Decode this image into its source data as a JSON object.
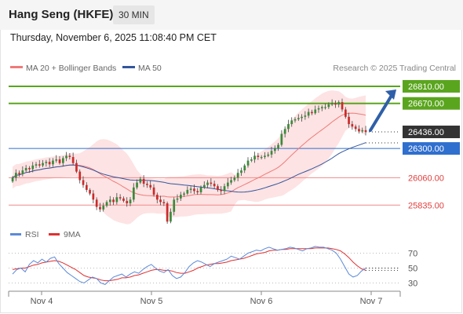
{
  "header": {
    "title": "Hang Seng (HKFE)",
    "interval": "30 MIN",
    "datetime": "Thursday, November 6, 2025 11:08:40 PM CET"
  },
  "legend": {
    "ma20_bb": "MA 20 + Bollinger Bands",
    "ma50": "MA 50",
    "credit": "Research © 2025 Trading Central",
    "rsi": "RSI",
    "rsi_ma": "9MA"
  },
  "colors": {
    "up": "#3a8a3a",
    "down": "#cc2a2a",
    "ma20": "#f07a7a",
    "ma50": "#33559e",
    "band": "#fde0e0",
    "green_level": "#5aa51e",
    "blue_level": "#2f6fce",
    "red_level": "#f08a8a",
    "current": "#333333",
    "arrow": "#2f5fa8",
    "rsi_line": "#5b8ad9",
    "rsi_ma_line": "#e03030"
  },
  "chart_data": [
    {
      "type": "candlestick",
      "title": "Hang Seng (HKFE)",
      "x_ticks": [
        "Nov 4",
        "Nov 5",
        "Nov 6",
        "Nov 7"
      ],
      "ylim": [
        25650,
        26900
      ],
      "levels": [
        {
          "value": 26810.0,
          "label": "26810.00",
          "kind": "resistance"
        },
        {
          "value": 26670.0,
          "label": "26670.00",
          "kind": "resistance"
        },
        {
          "value": 26436.0,
          "label": "26436.00",
          "kind": "current"
        },
        {
          "value": 26300.0,
          "label": "26300.00",
          "kind": "pivot"
        },
        {
          "value": 26060.0,
          "label": "26060.00",
          "kind": "support"
        },
        {
          "value": 25835.0,
          "label": "25835.00",
          "kind": "support"
        }
      ],
      "series": [
        {
          "name": "MA 20 + Bollinger Bands",
          "kind": "ma20"
        },
        {
          "name": "MA 50",
          "kind": "ma50"
        }
      ],
      "close": [
        26060,
        26100,
        26090,
        26120,
        26140,
        26130,
        26160,
        26170,
        26160,
        26180,
        26190,
        26170,
        26200,
        26210,
        26180,
        26220,
        26240,
        26230,
        26180,
        26110,
        26040,
        26000,
        25960,
        25930,
        25880,
        25820,
        25800,
        25830,
        25860,
        25880,
        25860,
        25900,
        25890,
        25870,
        25850,
        25880,
        25980,
        26020,
        26050,
        26010,
        26000,
        25980,
        25920,
        25880,
        25860,
        25850,
        25700,
        25780,
        25880,
        25890,
        25920,
        25930,
        25960,
        25970,
        25950,
        25940,
        25980,
        26000,
        26020,
        26010,
        25990,
        25960,
        25950,
        25990,
        26020,
        26040,
        26060,
        26100,
        26120,
        26160,
        26200,
        26210,
        26240,
        26230,
        26230,
        26240,
        26250,
        26280,
        26300,
        26330,
        26420,
        26460,
        26500,
        26530,
        26540,
        26550,
        26560,
        26570,
        26600,
        26590,
        26620,
        26630,
        26640,
        26640,
        26660,
        26670,
        26660,
        26680,
        26620,
        26560,
        26500,
        26480,
        26460,
        26440,
        26450,
        26436
      ],
      "annotation": "projection arrow toward 26810.00"
    },
    {
      "type": "line",
      "title": "RSI",
      "series": [
        {
          "name": "RSI"
        },
        {
          "name": "9MA"
        }
      ],
      "y_ticks": [
        70,
        50,
        30
      ],
      "ylim": [
        20,
        80
      ],
      "rsi": [
        42,
        48,
        50,
        45,
        55,
        60,
        57,
        62,
        58,
        63,
        65,
        56,
        50,
        44,
        40,
        36,
        32,
        30,
        34,
        38,
        36,
        30,
        28,
        33,
        38,
        40,
        42,
        38,
        42,
        45,
        43,
        48,
        52,
        55,
        50,
        46,
        44,
        48,
        40,
        36,
        38,
        44,
        52,
        57,
        60,
        58,
        55,
        52,
        56,
        58,
        60,
        62,
        66,
        64,
        62,
        66,
        70,
        72,
        74,
        73,
        76,
        78,
        76,
        74,
        75,
        76,
        78,
        77,
        75,
        73,
        76,
        77,
        79,
        78,
        78,
        76,
        74,
        70,
        62,
        52,
        42,
        38,
        40,
        46,
        50
      ],
      "rsi_ma": [
        48,
        49,
        50,
        50,
        52,
        54,
        55,
        57,
        58,
        59,
        60,
        59,
        57,
        54,
        51,
        48,
        44,
        40,
        38,
        37,
        36,
        34,
        33,
        33,
        34,
        35,
        37,
        37,
        38,
        40,
        41,
        43,
        45,
        47,
        48,
        48,
        47,
        47,
        46,
        44,
        43,
        43,
        45,
        47,
        50,
        52,
        54,
        55,
        56,
        56,
        57,
        58,
        60,
        61,
        62,
        63,
        65,
        67,
        69,
        70,
        71,
        73,
        74,
        74,
        75,
        75,
        76,
        76,
        76,
        76,
        76,
        76,
        77,
        77,
        77,
        77,
        76,
        75,
        73,
        69,
        64,
        58,
        53,
        49,
        47
      ]
    }
  ]
}
